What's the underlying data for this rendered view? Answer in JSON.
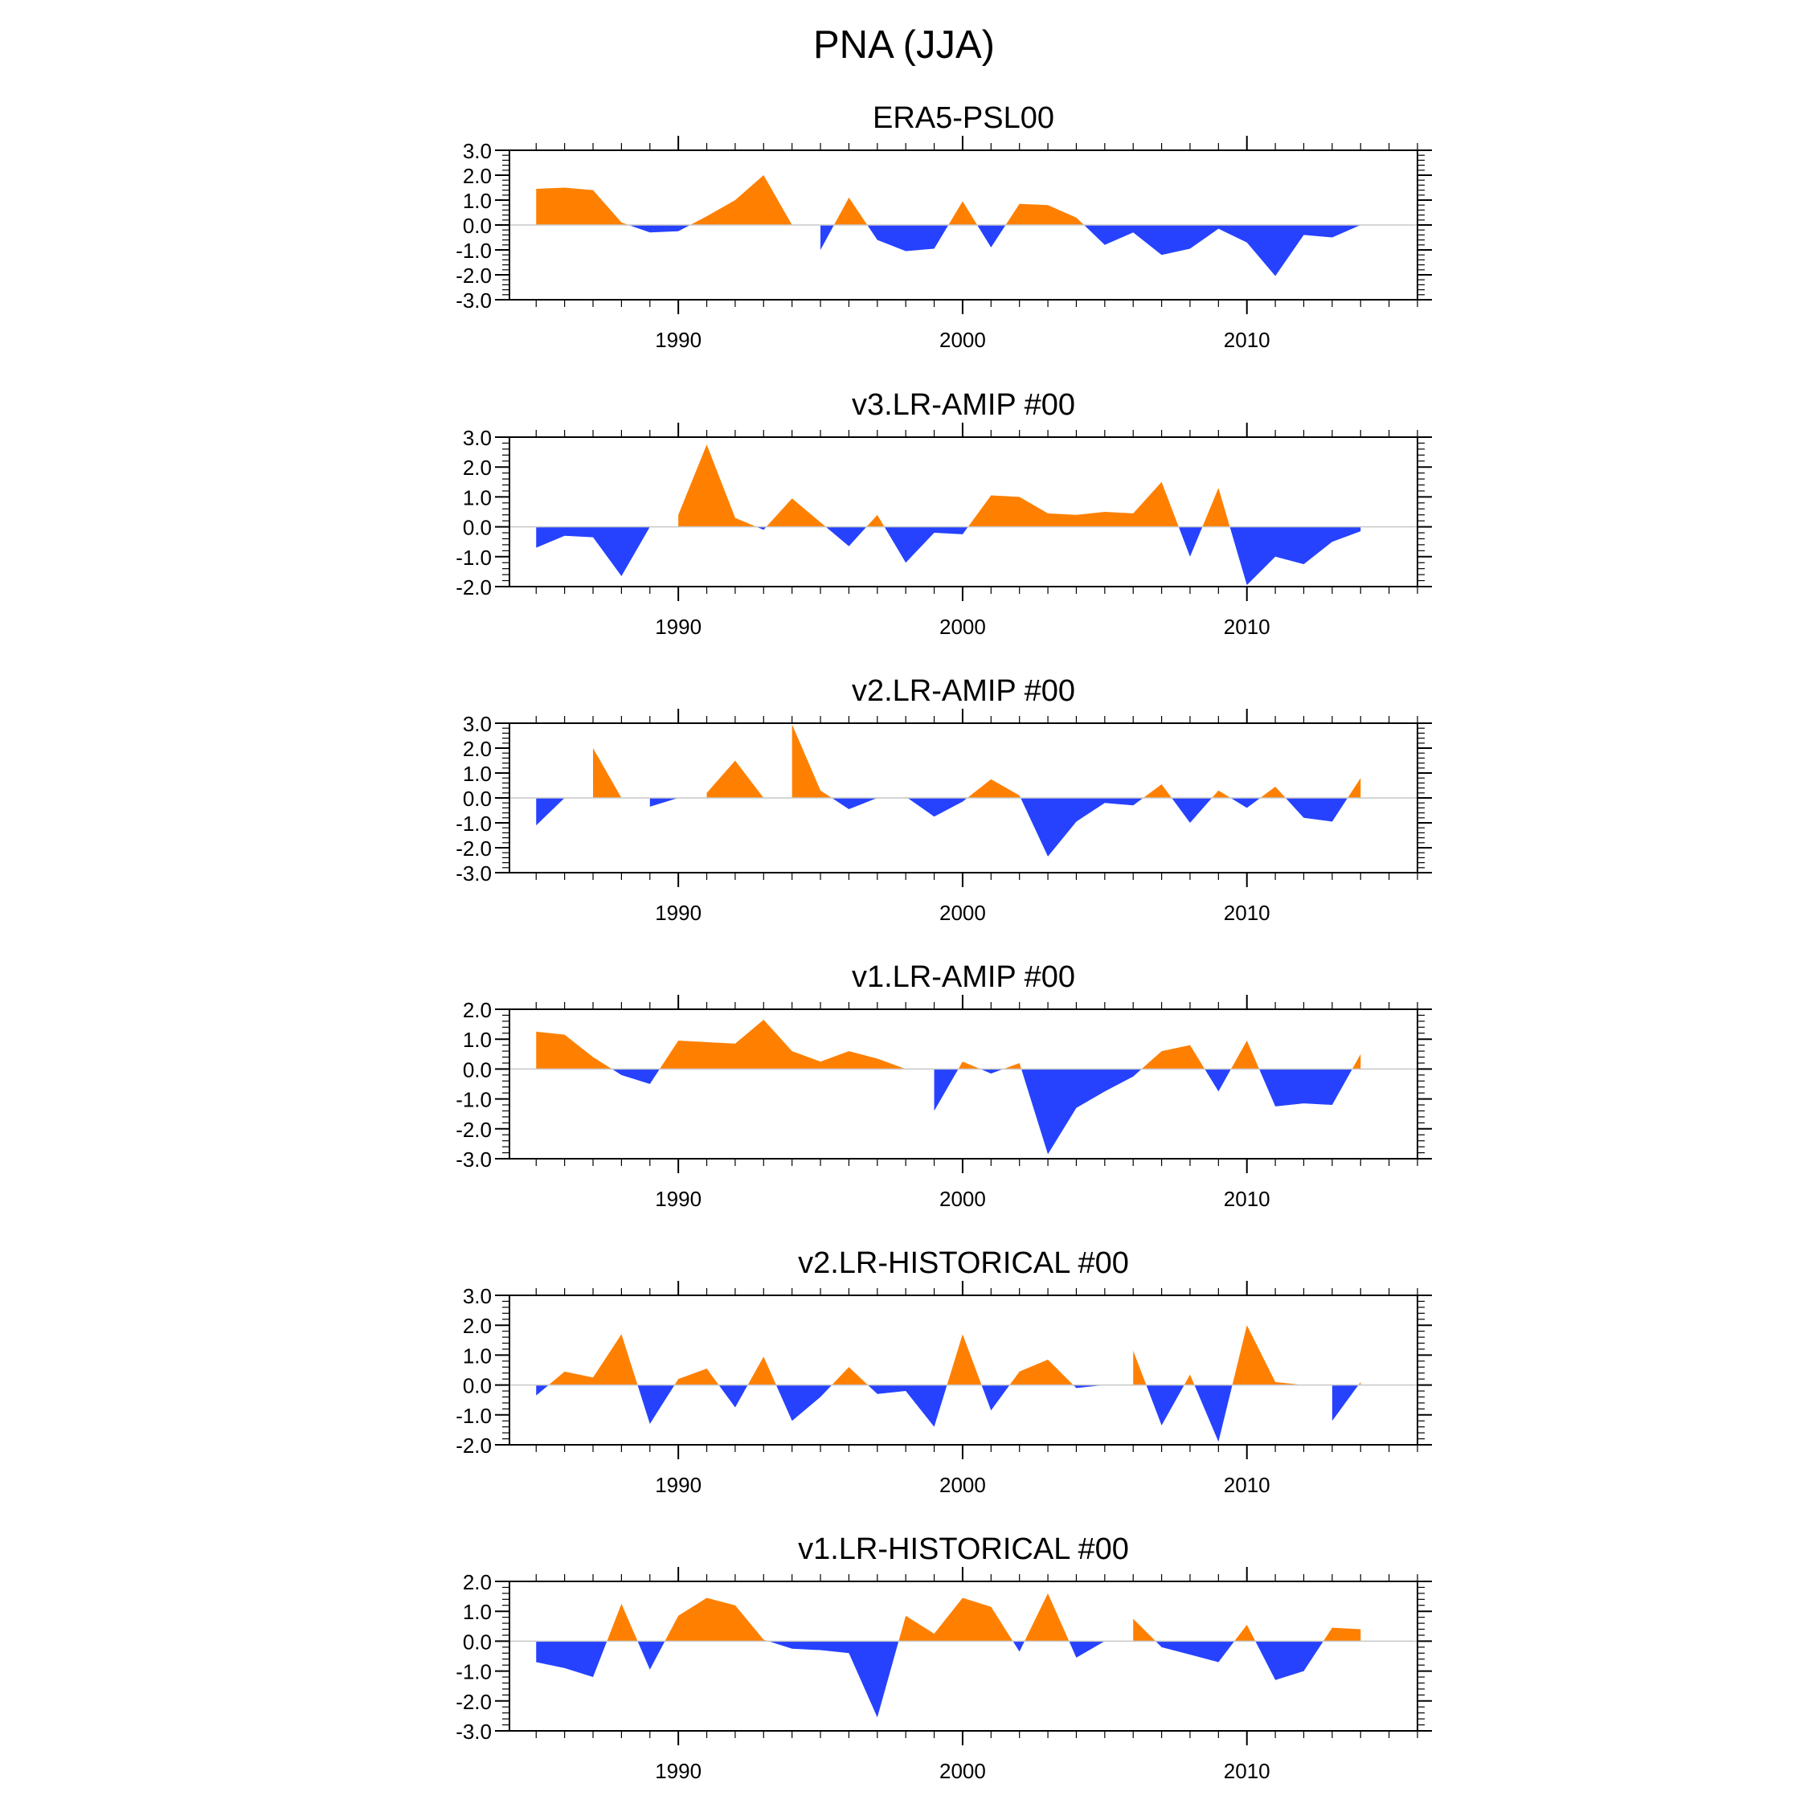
{
  "figure": {
    "title": "PNA (JJA)"
  },
  "colors": {
    "positive": "#ff8000",
    "negative": "#2642ff",
    "axis": "#000000"
  },
  "chart_data": [
    {
      "type": "area",
      "title": "ERA5-PSL00",
      "x_start": 1985,
      "x_range": [
        1984.06,
        2016.0
      ],
      "x_ticks": [
        1990,
        2000,
        2010
      ],
      "x_tick_labels": [
        "1990",
        "2000",
        "2010"
      ],
      "ylim": [
        -3,
        3
      ],
      "y_ticks": [
        3,
        2,
        1,
        0,
        -1,
        -2,
        -3
      ],
      "y_tick_labels": [
        "3.0",
        "2.0",
        "1.0",
        "0.0",
        "-1.0",
        "-2.0",
        "-3.0"
      ],
      "values": [
        1.45,
        1.5,
        1.4,
        0.1,
        -0.3,
        -0.25,
        0.35,
        1.0,
        2.0,
        0.0,
        -1.0,
        1.1,
        -0.6,
        -1.05,
        -0.95,
        0.95,
        -0.9,
        0.85,
        0.8,
        0.3,
        -0.8,
        -0.3,
        -1.2,
        -0.95,
        -0.15,
        -0.7,
        -2.05,
        -0.4,
        -0.5,
        0.0
      ]
    },
    {
      "type": "area",
      "title": "v3.LR-AMIP  #00",
      "x_start": 1985,
      "x_range": [
        1984.06,
        2016.0
      ],
      "x_ticks": [
        1990,
        2000,
        2010
      ],
      "x_tick_labels": [
        "1990",
        "2000",
        "2010"
      ],
      "ylim": [
        -2,
        3
      ],
      "y_ticks": [
        3,
        2,
        1,
        0,
        -1,
        -2
      ],
      "y_tick_labels": [
        "3.0",
        "2.0",
        "1.0",
        "0.0",
        "-1.0",
        "-2.0"
      ],
      "values": [
        -0.7,
        -0.3,
        -0.35,
        -1.65,
        0.0,
        0.4,
        2.75,
        0.3,
        -0.1,
        0.95,
        0.15,
        -0.65,
        0.4,
        -1.2,
        -0.2,
        -0.25,
        1.05,
        1.0,
        0.45,
        0.4,
        0.5,
        0.45,
        1.5,
        -1.0,
        1.3,
        -1.95,
        -1.0,
        -1.25,
        -0.5,
        -0.15
      ]
    },
    {
      "type": "area",
      "title": "v2.LR-AMIP  #00",
      "x_start": 1985,
      "x_range": [
        1984.06,
        2016.0
      ],
      "x_ticks": [
        1990,
        2000,
        2010
      ],
      "x_tick_labels": [
        "1990",
        "2000",
        "2010"
      ],
      "ylim": [
        -3,
        3
      ],
      "y_ticks": [
        3,
        2,
        1,
        0,
        -1,
        -2,
        -3
      ],
      "y_tick_labels": [
        "3.0",
        "2.0",
        "1.0",
        "0.0",
        "-1.0",
        "-2.0",
        "-3.0"
      ],
      "values": [
        -1.1,
        0.0,
        2.0,
        0.0,
        -0.35,
        0.0,
        0.2,
        1.5,
        0.0,
        2.95,
        0.3,
        -0.45,
        0.0,
        0.05,
        -0.75,
        -0.15,
        0.75,
        0.1,
        -2.35,
        -0.95,
        -0.2,
        -0.3,
        0.55,
        -1.0,
        0.3,
        -0.4,
        0.45,
        -0.8,
        -0.95,
        0.8
      ]
    },
    {
      "type": "area",
      "title": "v1.LR-AMIP  #00",
      "x_start": 1985,
      "x_range": [
        1984.06,
        2016.0
      ],
      "x_ticks": [
        1990,
        2000,
        2010
      ],
      "x_tick_labels": [
        "1990",
        "2000",
        "2010"
      ],
      "ylim": [
        -3,
        2
      ],
      "y_ticks": [
        2,
        1,
        0,
        -1,
        -2,
        -3
      ],
      "y_tick_labels": [
        "2.0",
        "1.0",
        "0.0",
        "-1.0",
        "-2.0",
        "-3.0"
      ],
      "values": [
        1.25,
        1.15,
        0.4,
        -0.2,
        -0.5,
        0.95,
        0.9,
        0.85,
        1.65,
        0.6,
        0.25,
        0.6,
        0.35,
        0.0,
        -1.4,
        0.25,
        -0.15,
        0.2,
        -2.85,
        -1.3,
        -0.75,
        -0.25,
        0.6,
        0.8,
        -0.75,
        0.95,
        -1.25,
        -1.15,
        -1.2,
        0.5
      ]
    },
    {
      "type": "area",
      "title": "v2.LR-HISTORICAL  #00",
      "x_start": 1985,
      "x_range": [
        1984.06,
        2016.0
      ],
      "x_ticks": [
        1990,
        2000,
        2010
      ],
      "x_tick_labels": [
        "1990",
        "2000",
        "2010"
      ],
      "ylim": [
        -2,
        3
      ],
      "y_ticks": [
        3,
        2,
        1,
        0,
        -1,
        -2
      ],
      "y_tick_labels": [
        "3.0",
        "2.0",
        "1.0",
        "0.0",
        "-1.0",
        "-2.0"
      ],
      "values": [
        -0.35,
        0.45,
        0.25,
        1.7,
        -1.3,
        0.2,
        0.55,
        -0.75,
        0.95,
        -1.2,
        -0.4,
        0.6,
        -0.3,
        -0.2,
        -1.4,
        1.7,
        -0.85,
        0.45,
        0.85,
        -0.1,
        0.0,
        1.15,
        -1.35,
        0.35,
        -1.9,
        2.0,
        0.1,
        0.0,
        -1.2,
        0.1
      ]
    },
    {
      "type": "area",
      "title": "v1.LR-HISTORICAL  #00",
      "x_start": 1985,
      "x_range": [
        1984.06,
        2016.0
      ],
      "x_ticks": [
        1990,
        2000,
        2010
      ],
      "x_tick_labels": [
        "1990",
        "2000",
        "2010"
      ],
      "ylim": [
        -3,
        2
      ],
      "y_ticks": [
        2,
        1,
        0,
        -1,
        -2,
        -3
      ],
      "y_tick_labels": [
        "2.0",
        "1.0",
        "0.0",
        "-1.0",
        "-2.0",
        "-3.0"
      ],
      "values": [
        -0.7,
        -0.9,
        -1.2,
        1.25,
        -0.95,
        0.85,
        1.45,
        1.2,
        0.05,
        -0.25,
        -0.3,
        -0.4,
        -2.55,
        0.85,
        0.25,
        1.45,
        1.15,
        -0.35,
        1.6,
        -0.55,
        0.0,
        0.75,
        -0.2,
        -0.45,
        -0.7,
        0.55,
        -1.3,
        -1.0,
        0.45,
        0.4
      ]
    }
  ]
}
